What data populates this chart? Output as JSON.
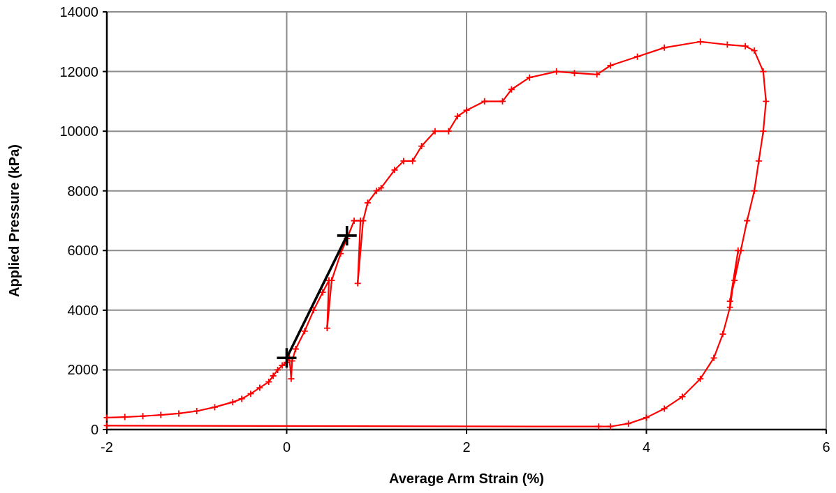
{
  "chart_data": {
    "type": "line",
    "xlabel": "Average Arm Strain (%)",
    "ylabel": "Applied Pressure (kPa)",
    "xlim": [
      -2,
      6
    ],
    "xticks": [
      -2,
      0,
      2,
      4,
      6
    ],
    "ylim": [
      0,
      14000
    ],
    "yticks": [
      0,
      2000,
      4000,
      6000,
      8000,
      10000,
      12000,
      14000
    ],
    "grid": true,
    "marker": "cross",
    "line_style": "solid",
    "series": [
      {
        "color": "#ff0000",
        "x": [
          -2,
          -1.8,
          -1.6,
          -1.4,
          -1.2,
          -1.0,
          -0.8,
          -0.6,
          -0.5,
          -0.4,
          -0.3,
          -0.2,
          -0.15,
          -0.1,
          -0.05,
          0,
          0.03,
          0.05,
          0.06,
          0.1,
          0.2,
          0.3,
          0.4,
          0.47,
          0.45,
          0.5,
          0.6,
          0.67,
          0.75,
          0.82,
          0.79,
          0.85,
          0.9,
          1.0,
          1.05,
          1.2,
          1.3,
          1.4,
          1.5,
          1.65,
          1.8,
          1.9,
          2.0,
          2.2,
          2.4,
          2.5,
          2.7,
          3.0,
          3.2,
          3.45,
          3.6,
          3.9,
          4.2,
          4.6,
          4.9,
          5.1,
          5.2,
          5.3,
          5.33,
          5.3,
          5.25,
          5.2,
          5.12,
          5.05,
          4.98,
          4.93,
          5.02,
          4.93,
          4.85,
          4.75,
          4.6,
          4.4,
          4.2,
          4.0,
          3.8,
          3.6,
          3.47,
          -2
        ],
        "values": [
          400,
          420,
          450,
          490,
          540,
          620,
          750,
          920,
          1030,
          1200,
          1400,
          1600,
          1800,
          2000,
          2150,
          2250,
          2400,
          1700,
          2300,
          2700,
          3300,
          4000,
          4600,
          5000,
          3400,
          5000,
          5900,
          6400,
          7000,
          7000,
          4900,
          7000,
          7600,
          8000,
          8100,
          8700,
          9000,
          9000,
          9500,
          10000,
          10000,
          10500,
          10700,
          11000,
          11000,
          11400,
          11800,
          12000,
          11950,
          11900,
          12200,
          12500,
          12800,
          13000,
          12900,
          12850,
          12700,
          12000,
          11000,
          10000,
          9000,
          8000,
          7000,
          6000,
          5000,
          4300,
          6000,
          4100,
          3200,
          2400,
          1700,
          1100,
          700,
          400,
          200,
          100,
          100,
          130
        ]
      },
      {
        "color": "#000000",
        "x": [
          0,
          0.67
        ],
        "values": [
          2400,
          6500
        ]
      }
    ]
  }
}
